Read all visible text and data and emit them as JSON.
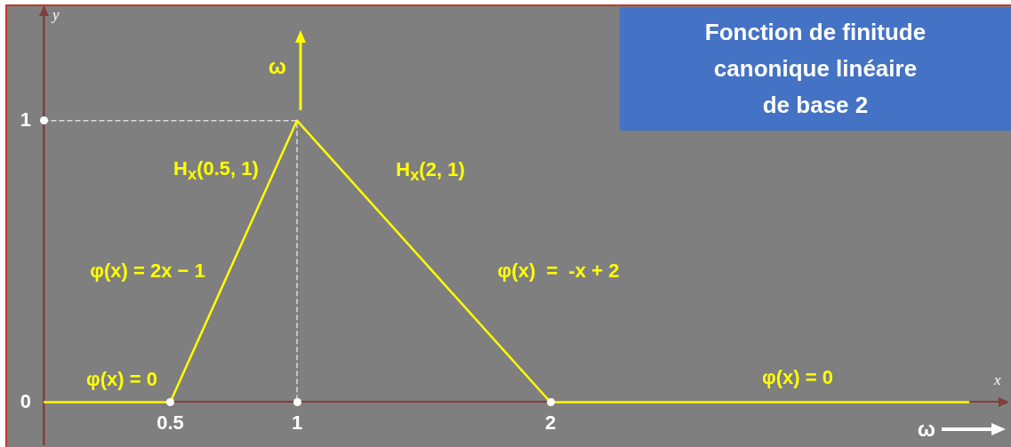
{
  "chart_data": {
    "type": "line",
    "title": "Fonction de finitude canonique linéaire de base 2",
    "xlabel": "x",
    "ylabel": "y",
    "series": [
      {
        "color": "#ffff00",
        "x": [
          0,
          0.5,
          1,
          2,
          3.65
        ],
        "values": [
          0,
          0,
          1,
          0,
          0
        ]
      },
      {
        "color": "#d9d9d9",
        "line_style": "dashed",
        "x": [
          0,
          1,
          1
        ],
        "values": [
          1,
          1,
          0
        ]
      }
    ],
    "xlim": [
      0,
      3.8
    ],
    "ylim": [
      -0.15,
      1.4
    ],
    "xticks": [
      0.5,
      1,
      2
    ],
    "yticks": [
      0,
      1
    ],
    "annotations": [
      "φ(x) = 0",
      "φ(x) = 2x − 1",
      "H$_{x}$(0.5, 1)",
      "H$_{x}$(2, 1)",
      "φ(x)  =  -x + 2",
      "φ(x) = 0",
      "ω",
      "ω"
    ]
  }
}
